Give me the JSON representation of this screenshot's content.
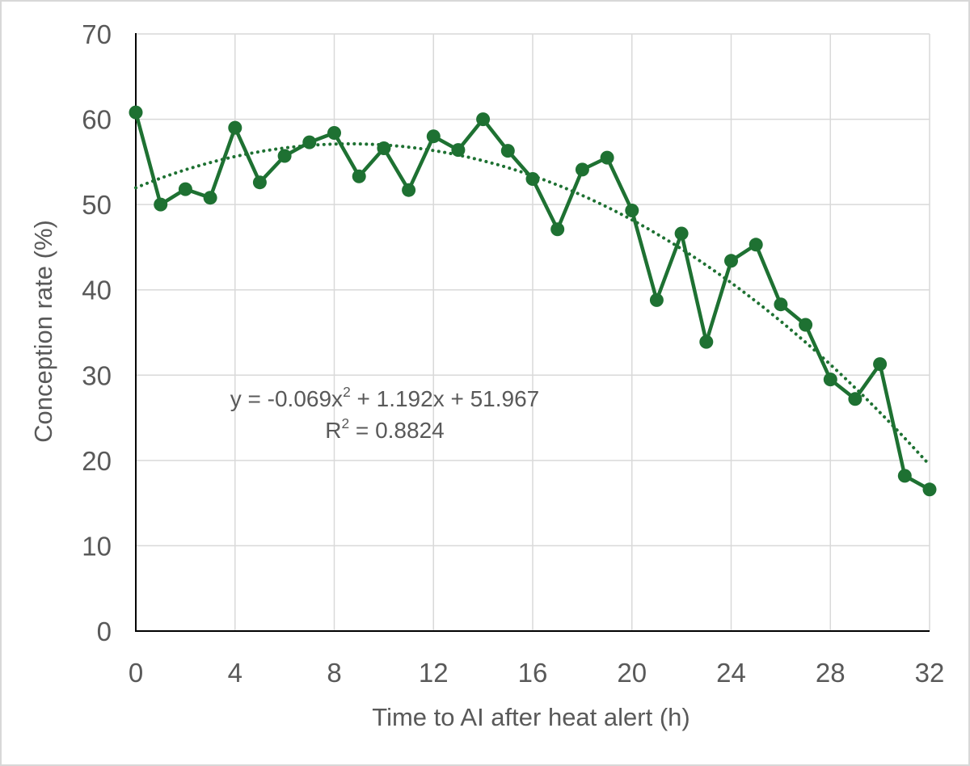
{
  "chart_data": {
    "type": "line",
    "title": "",
    "xlabel": "Time to AI after heat alert (h)",
    "ylabel": "Conception rate (%)",
    "xlim": [
      0,
      32
    ],
    "ylim": [
      0,
      70
    ],
    "x_ticks": [
      0,
      4,
      8,
      12,
      16,
      20,
      24,
      28,
      32
    ],
    "y_ticks": [
      0,
      10,
      20,
      30,
      40,
      50,
      60,
      70
    ],
    "grid": true,
    "legend_position": "none",
    "marker": "circle",
    "x": [
      0,
      1,
      2,
      3,
      4,
      5,
      6,
      7,
      8,
      9,
      10,
      11,
      12,
      13,
      14,
      15,
      16,
      17,
      18,
      19,
      20,
      21,
      22,
      23,
      24,
      25,
      26,
      27,
      28,
      29,
      30,
      31,
      32
    ],
    "y": [
      60.8,
      50,
      51.8,
      50.8,
      59,
      52.6,
      55.7,
      57.3,
      58.4,
      53.3,
      56.6,
      51.7,
      58,
      56.4,
      60,
      56.3,
      53,
      47.1,
      54.1,
      55.5,
      49.3,
      38.8,
      46.6,
      33.9,
      43.4,
      45.3,
      38.3,
      35.9,
      29.5,
      27.2,
      31.3,
      18.2,
      16.6
    ],
    "trendline": {
      "type": "polynomial",
      "order": 2,
      "a": -0.069,
      "b": 1.192,
      "c": 51.967,
      "r_squared": 0.8824,
      "style": "dotted"
    }
  },
  "annotation": {
    "equation": {
      "prefix": "y = -0.069x",
      "sup": "2",
      "suffix": " + 1.192x + 51.967"
    },
    "r_squared": {
      "prefix": "R",
      "sup": "2",
      "suffix": " = 0.8824"
    }
  },
  "colors": {
    "series": "#1E7132",
    "trendline": "#1E7132",
    "gridline": "#D9D9D9",
    "axis_line": "#000000",
    "text": "#595959",
    "background": "#FFFFFF",
    "frame_border": "#D8D8D8"
  }
}
